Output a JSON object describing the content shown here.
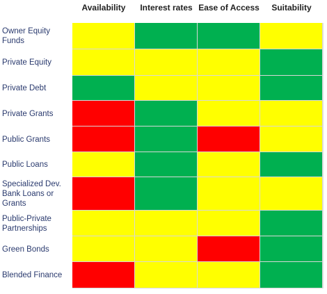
{
  "chart_data": {
    "type": "heatmap",
    "columns": [
      "Availability",
      "Interest rates",
      "Ease of Access",
      "Suitability"
    ],
    "rows": [
      "Owner Equity\nFunds",
      "Private Equity",
      "Private Debt",
      "Private Grants",
      "Public Grants",
      "Public Loans",
      "Specialized Dev.\nBank Loans or\nGrants",
      "Public-Private\nPartnerships",
      "Green Bonds",
      "Blended Finance"
    ],
    "values": [
      [
        "yellow",
        "green",
        "green",
        "yellow"
      ],
      [
        "yellow",
        "yellow",
        "yellow",
        "green"
      ],
      [
        "green",
        "yellow",
        "yellow",
        "green"
      ],
      [
        "red",
        "green",
        "yellow",
        "yellow"
      ],
      [
        "red",
        "green",
        "red",
        "yellow"
      ],
      [
        "yellow",
        "green",
        "yellow",
        "green"
      ],
      [
        "red",
        "green",
        "yellow",
        "yellow"
      ],
      [
        "yellow",
        "yellow",
        "yellow",
        "green"
      ],
      [
        "yellow",
        "yellow",
        "red",
        "green"
      ],
      [
        "red",
        "yellow",
        "yellow",
        "green"
      ]
    ],
    "colors": {
      "green": "#00b050",
      "yellow": "#ffff00",
      "red": "#ff0000"
    },
    "grid": true,
    "legend": "none"
  }
}
